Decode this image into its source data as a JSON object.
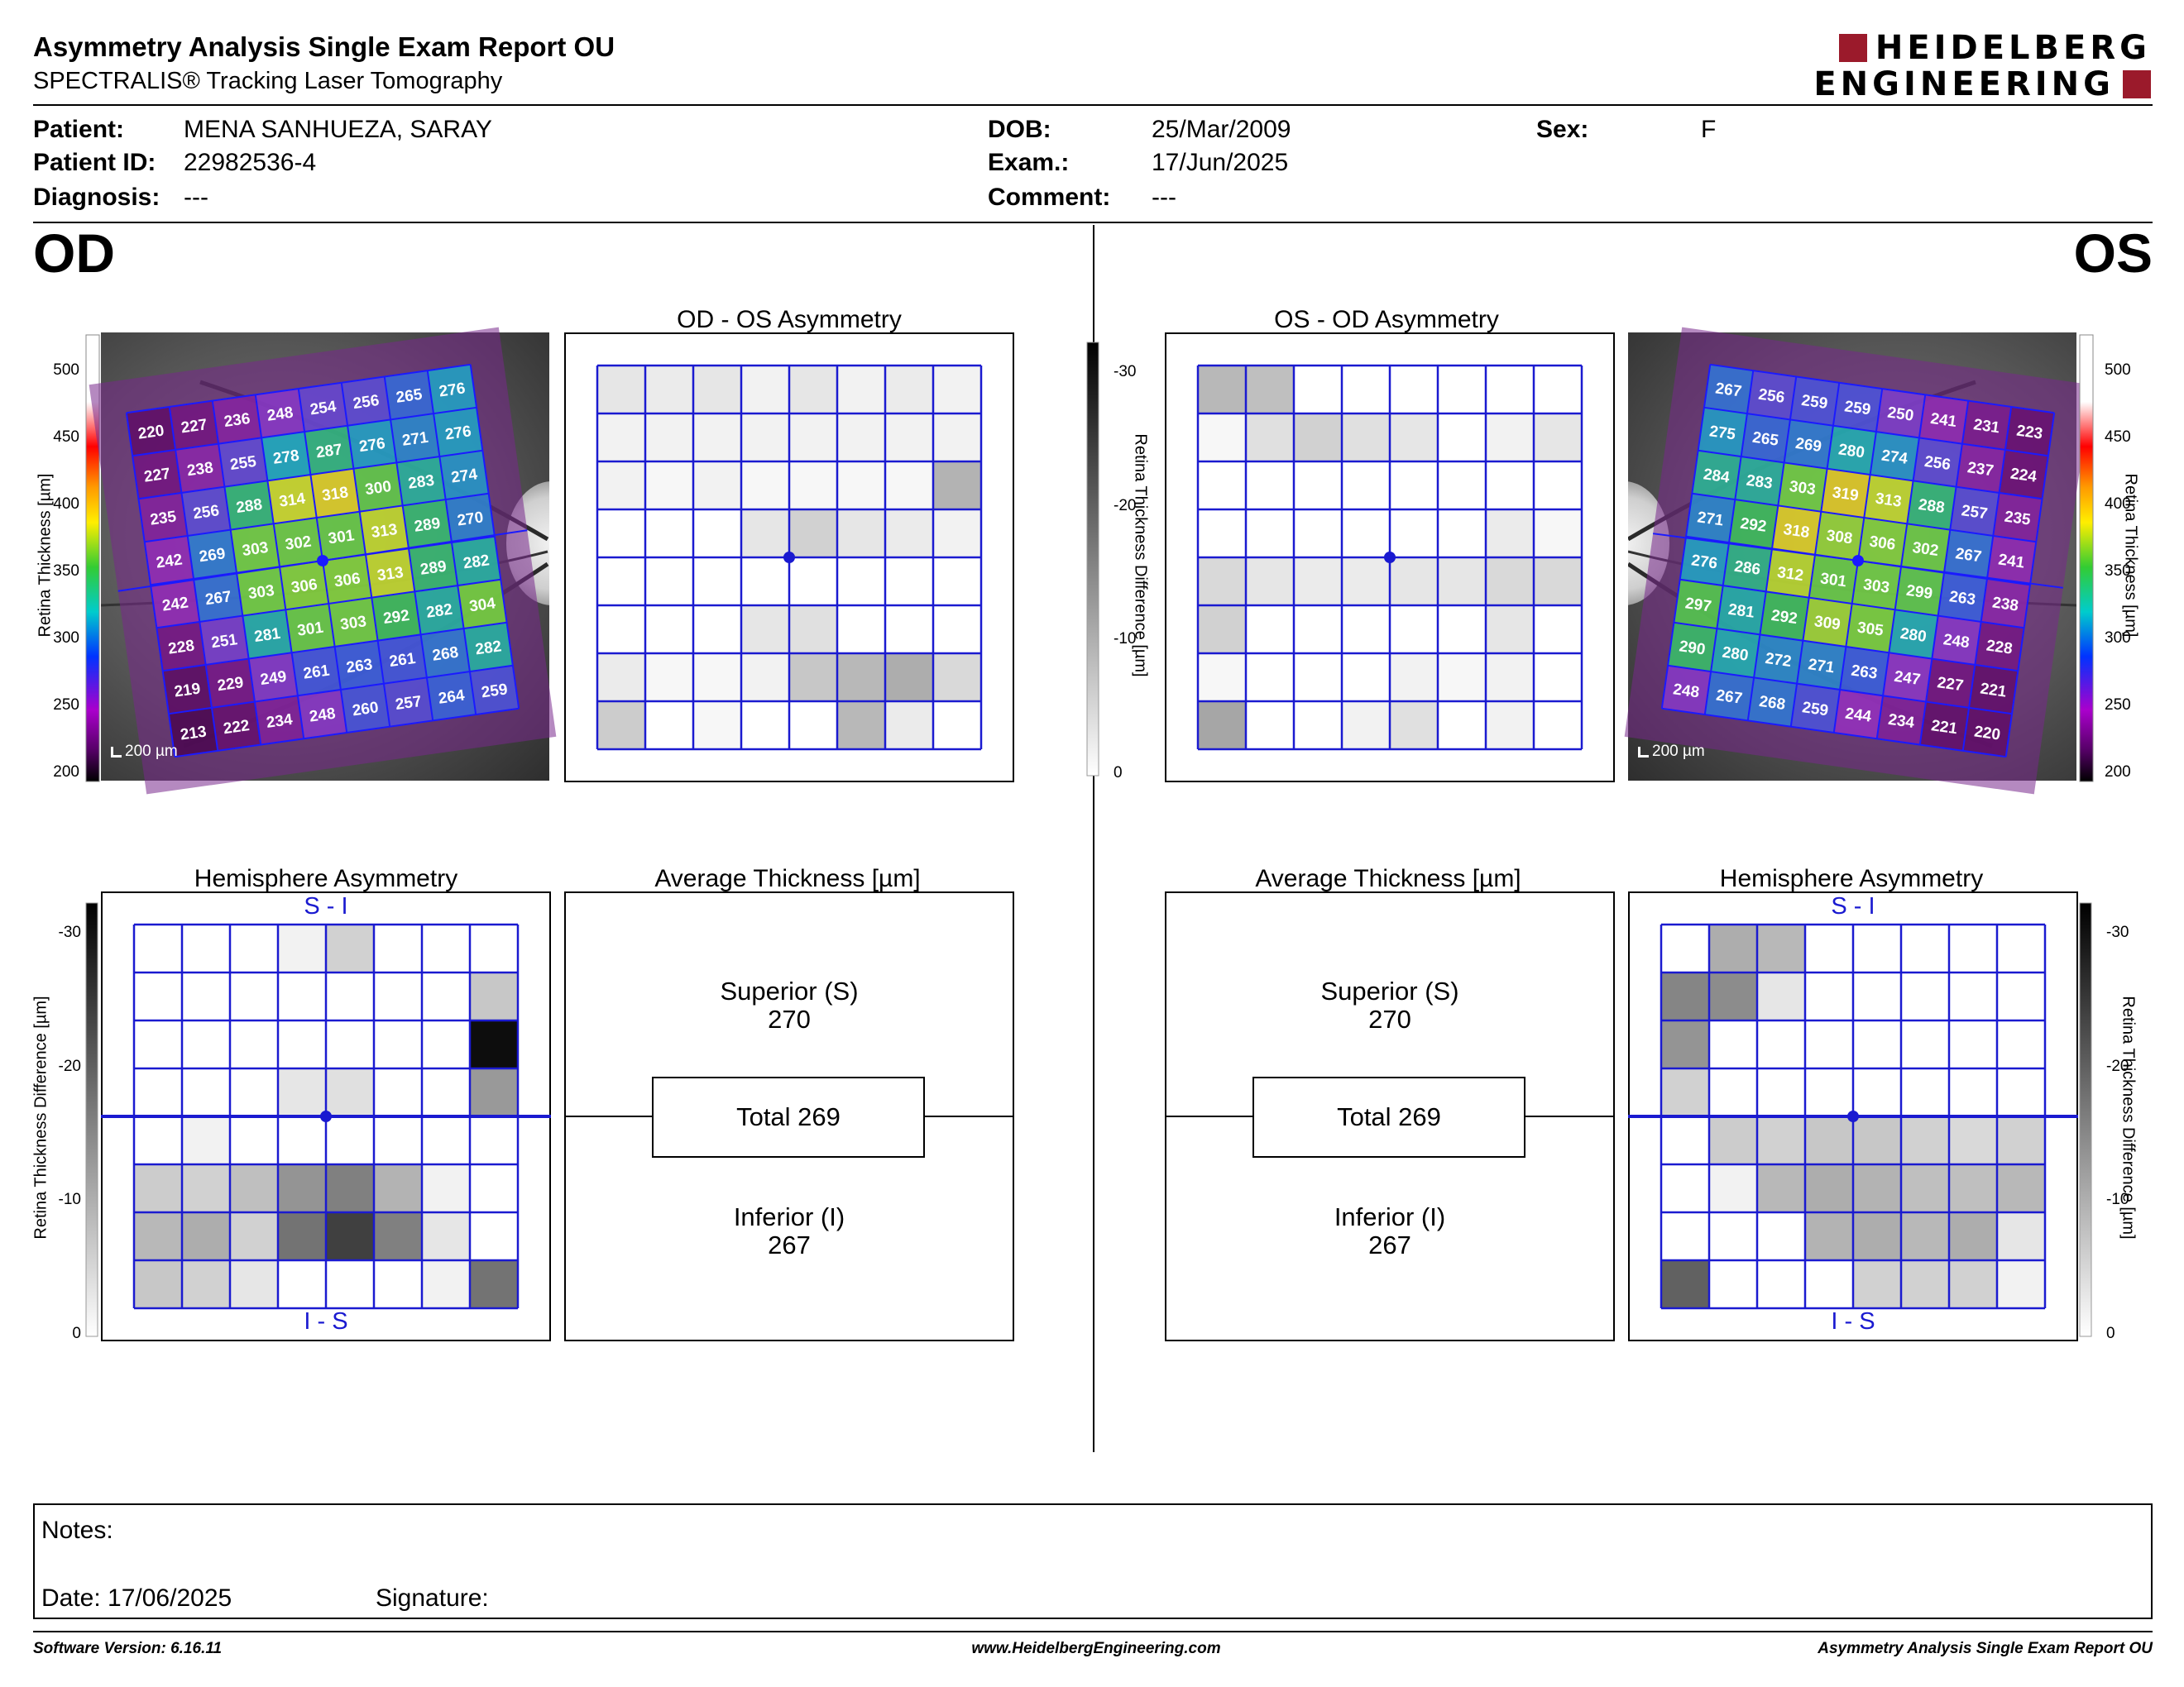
{
  "header": {
    "title": "Asymmetry Analysis Single Exam Report OU",
    "subtitle": "SPECTRALIS® Tracking Laser Tomography",
    "logo_line1": "HEIDELBERG",
    "logo_line2": "ENGINEERING",
    "logo_color": "#9b1a2b"
  },
  "patient": {
    "name_label": "Patient:",
    "name": "MENA SANHUEZA, SARAY",
    "id_label": "Patient ID:",
    "id": "22982536-4",
    "diagnosis_label": "Diagnosis:",
    "diagnosis": "---",
    "dob_label": "DOB:",
    "dob": "25/Mar/2009",
    "exam_label": "Exam.:",
    "exam": "17/Jun/2025",
    "comment_label": "Comment:",
    "comment": "---",
    "sex_label": "Sex:",
    "sex": "F"
  },
  "eyes": {
    "od": "OD",
    "os": "OS"
  },
  "panels": {
    "od_os_title": "OD - OS Asymmetry",
    "os_od_title": "OS - OD Asymmetry",
    "hemisphere_title": "Hemisphere Asymmetry",
    "average_title": "Average Thickness [µm]",
    "hemi_top_label": "S - I",
    "hemi_bottom_label": "I - S",
    "scale_bar": "200 µm",
    "thickness_axis_label": "Retina  Thickness [µm]",
    "diff_axis_label": "Retina Thickness Difference [µm]",
    "thickness_ticks": [
      "500",
      "450",
      "400",
      "350",
      "300",
      "250",
      "200"
    ],
    "diff_ticks": [
      "-30",
      "-20",
      "-10",
      "0"
    ]
  },
  "average_thickness": {
    "od": {
      "superior_label": "Superior (S)",
      "superior": "270",
      "total": "Total 269",
      "inferior_label": "Inferior (I)",
      "inferior": "267"
    },
    "os": {
      "superior_label": "Superior (S)",
      "superior": "270",
      "total": "Total 269",
      "inferior_label": "Inferior (I)",
      "inferior": "267"
    }
  },
  "thickness_grid": {
    "od": [
      [
        220,
        227,
        236,
        248,
        254,
        256,
        265,
        276
      ],
      [
        227,
        238,
        255,
        278,
        287,
        276,
        271,
        276
      ],
      [
        235,
        256,
        288,
        314,
        318,
        300,
        283,
        274
      ],
      [
        242,
        269,
        303,
        302,
        301,
        313,
        289,
        270
      ],
      [
        242,
        267,
        303,
        306,
        306,
        313,
        289,
        282
      ],
      [
        228,
        251,
        281,
        301,
        303,
        292,
        282,
        304
      ],
      [
        219,
        229,
        249,
        261,
        263,
        261,
        268,
        282
      ],
      [
        213,
        222,
        234,
        248,
        260,
        257,
        264,
        259
      ]
    ],
    "os": [
      [
        267,
        256,
        259,
        259,
        250,
        241,
        231,
        223
      ],
      [
        275,
        265,
        269,
        280,
        274,
        256,
        237,
        224
      ],
      [
        284,
        283,
        303,
        319,
        313,
        288,
        257,
        235
      ],
      [
        271,
        292,
        318,
        308,
        306,
        302,
        267,
        241
      ],
      [
        276,
        286,
        312,
        301,
        303,
        299,
        263,
        238
      ],
      [
        297,
        281,
        292,
        309,
        305,
        280,
        248,
        228
      ],
      [
        290,
        280,
        272,
        271,
        263,
        247,
        227,
        221
      ],
      [
        248,
        267,
        268,
        259,
        244,
        234,
        221,
        220
      ]
    ]
  },
  "asymmetry_shades": {
    "od_os": [
      [
        0.1,
        0.08,
        0.1,
        0.05,
        0.1,
        0.05,
        0.08,
        0.05
      ],
      [
        0.05,
        0.05,
        0.05,
        0.05,
        0.05,
        0.05,
        0.05,
        0.05
      ],
      [
        0.05,
        0.03,
        0.05,
        0.03,
        0.03,
        0.03,
        0.03,
        0.3
      ],
      [
        0.0,
        0.0,
        0.0,
        0.1,
        0.18,
        0.1,
        0.08,
        0.05
      ],
      [
        0.0,
        0.0,
        0.0,
        0.0,
        0.0,
        0.0,
        0.0,
        0.0
      ],
      [
        0.0,
        0.0,
        0.0,
        0.1,
        0.12,
        0.0,
        0.0,
        0.0
      ],
      [
        0.08,
        0.03,
        0.03,
        0.05,
        0.22,
        0.28,
        0.32,
        0.15
      ],
      [
        0.2,
        0.0,
        0.03,
        0.0,
        0.0,
        0.28,
        0.08,
        0.0
      ]
    ],
    "os_od": [
      [
        0.28,
        0.25,
        0.0,
        0.0,
        0.0,
        0.0,
        0.0,
        0.0
      ],
      [
        0.03,
        0.12,
        0.18,
        0.12,
        0.1,
        0.0,
        0.05,
        0.1
      ],
      [
        0.0,
        0.0,
        0.0,
        0.0,
        0.0,
        0.0,
        0.0,
        0.0
      ],
      [
        0.0,
        0.0,
        0.0,
        0.0,
        0.0,
        0.0,
        0.08,
        0.03
      ],
      [
        0.15,
        0.1,
        0.08,
        0.08,
        0.1,
        0.1,
        0.15,
        0.15
      ],
      [
        0.18,
        0.0,
        0.0,
        0.0,
        0.0,
        0.0,
        0.1,
        0.0
      ],
      [
        0.03,
        0.0,
        0.0,
        0.0,
        0.05,
        0.03,
        0.05,
        0.0
      ],
      [
        0.35,
        0.0,
        0.0,
        0.05,
        0.12,
        0.0,
        0.05,
        0.0
      ]
    ],
    "hemi_od": [
      [
        0.0,
        0.0,
        0.0,
        0.05,
        0.18,
        0.0,
        0.0,
        0.0
      ],
      [
        0.0,
        0.0,
        0.0,
        0.0,
        0.0,
        0.0,
        0.0,
        0.22
      ],
      [
        0.0,
        0.0,
        0.0,
        0.0,
        0.0,
        0.0,
        0.0,
        0.95
      ],
      [
        0.0,
        0.0,
        0.0,
        0.1,
        0.12,
        0.0,
        0.0,
        0.4
      ],
      [
        0.0,
        0.05,
        0.0,
        0.0,
        0.0,
        0.0,
        0.0,
        0.0
      ],
      [
        0.2,
        0.18,
        0.25,
        0.42,
        0.5,
        0.3,
        0.05,
        0.0
      ],
      [
        0.28,
        0.32,
        0.18,
        0.55,
        0.75,
        0.5,
        0.1,
        0.0
      ],
      [
        0.22,
        0.18,
        0.1,
        0.0,
        0.0,
        0.0,
        0.05,
        0.55
      ]
    ],
    "hemi_os": [
      [
        0.0,
        0.32,
        0.28,
        0.0,
        0.0,
        0.0,
        0.0,
        0.0
      ],
      [
        0.48,
        0.45,
        0.1,
        0.0,
        0.0,
        0.0,
        0.0,
        0.0
      ],
      [
        0.42,
        0.0,
        0.0,
        0.0,
        0.0,
        0.0,
        0.0,
        0.0
      ],
      [
        0.18,
        0.0,
        0.0,
        0.0,
        0.0,
        0.0,
        0.0,
        0.0
      ],
      [
        0.0,
        0.2,
        0.18,
        0.22,
        0.22,
        0.18,
        0.15,
        0.18
      ],
      [
        0.0,
        0.05,
        0.28,
        0.32,
        0.3,
        0.25,
        0.25,
        0.28
      ],
      [
        0.0,
        0.0,
        0.0,
        0.3,
        0.32,
        0.28,
        0.32,
        0.1
      ],
      [
        0.62,
        0.0,
        0.0,
        0.0,
        0.18,
        0.18,
        0.18,
        0.05
      ]
    ]
  },
  "notes": {
    "notes_label": "Notes:",
    "date_label": "Date: 17/06/2025",
    "signature_label": "Signature:"
  },
  "footer": {
    "software": "Software Version: 6.16.11",
    "website": "www.HeidelbergEngineering.com",
    "report_name": "Asymmetry Analysis Single Exam Report OU"
  }
}
